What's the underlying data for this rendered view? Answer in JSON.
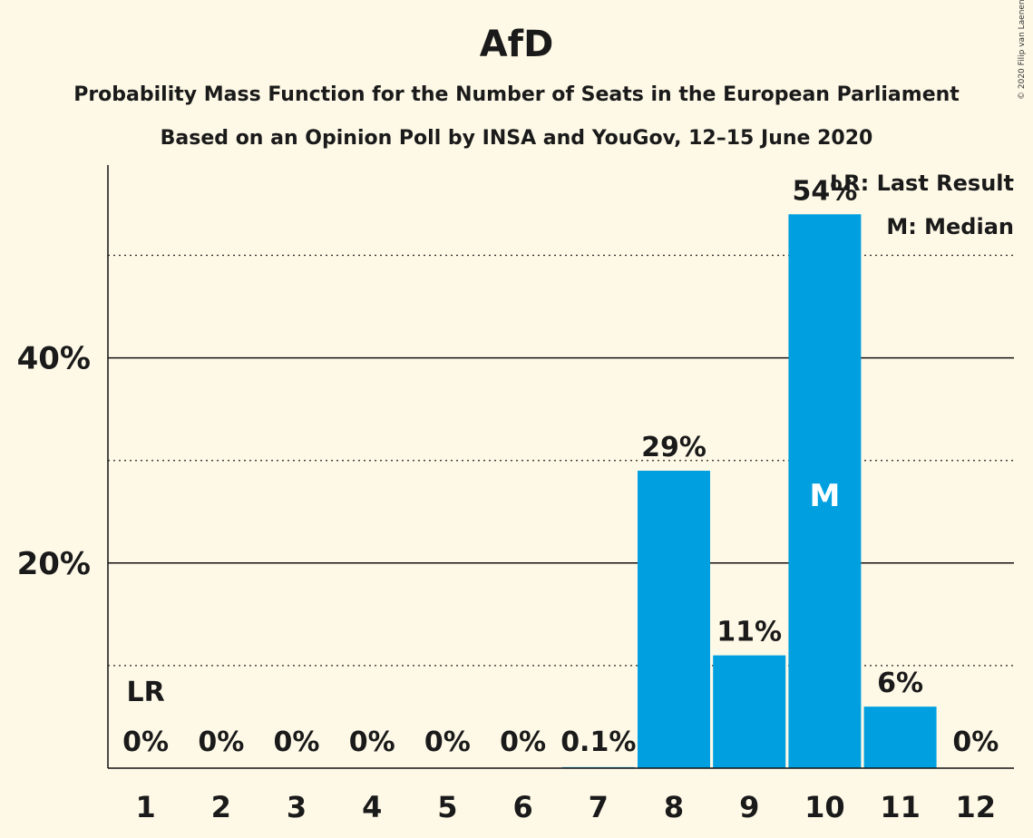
{
  "title": "AfD",
  "subtitle_1": "Probability Mass Function for the Number of Seats in the European Parliament",
  "subtitle_2": "Based on an Opinion Poll by INSA and YouGov, 12–15 June 2020",
  "copyright": "© 2020 Filip van Laenen",
  "legend": {
    "last_result": "LR: Last Result",
    "median": "M: Median"
  },
  "chart_data": {
    "type": "bar",
    "categories": [
      "1",
      "2",
      "3",
      "4",
      "5",
      "6",
      "7",
      "8",
      "9",
      "10",
      "11",
      "12"
    ],
    "values": [
      0,
      0,
      0,
      0,
      0,
      0,
      0.1,
      29,
      11,
      54,
      6,
      0
    ],
    "data_labels": [
      "0%",
      "0%",
      "0%",
      "0%",
      "0%",
      "0%",
      "0.1%",
      "29%",
      "11%",
      "54%",
      "6%",
      "0%"
    ],
    "y_ticks": [
      20,
      40
    ],
    "y_tick_labels": [
      "20%",
      "40%"
    ],
    "y_minor_gridlines": [
      10,
      30,
      50
    ],
    "ylim": [
      0,
      58.8
    ],
    "bar_color": "#00a0e0",
    "last_result_category": "1",
    "last_result_marker": "LR",
    "median_category": "10",
    "median_marker": "M",
    "grid": true
  }
}
